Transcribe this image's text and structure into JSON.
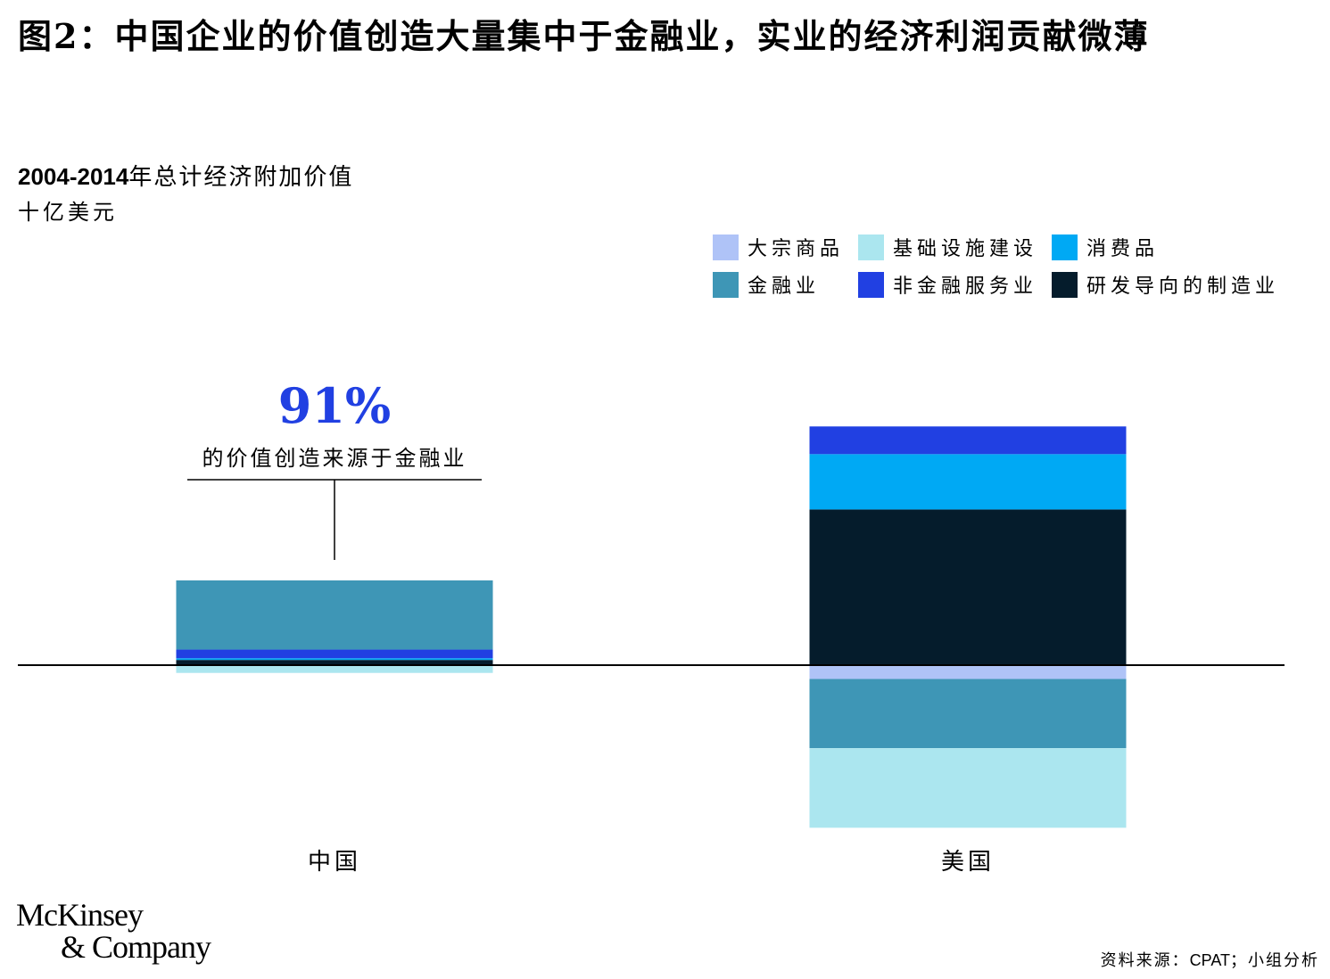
{
  "title": "图2：中国企业的价值创造大量集中于金融业，实业的经济利润贡献微薄",
  "subtitle": {
    "years": "2004-2014",
    "text": "年总计经济附加价值"
  },
  "unit": "十亿美元",
  "colors": {
    "commodities": "#afc3f7",
    "infrastructure": "#abe6ef",
    "consumer": "#00a9f4",
    "finance": "#3e96b6",
    "nonfin_services": "#2140e2",
    "rd_manufacturing": "#051c2c",
    "annotation_accent": "#2140e2"
  },
  "legend": [
    {
      "key": "commodities",
      "label": "大宗商品"
    },
    {
      "key": "infrastructure",
      "label": "基础设施建设"
    },
    {
      "key": "consumer",
      "label": "消费品"
    },
    {
      "key": "finance",
      "label": "金融业"
    },
    {
      "key": "nonfin_services",
      "label": "非金融服务业"
    },
    {
      "key": "rd_manufacturing",
      "label": "研发导向的制造业"
    }
  ],
  "annotation": {
    "value": "91%",
    "text": "的价值创造来源于金融业"
  },
  "chart_data": {
    "type": "bar",
    "stacked": true,
    "title": "2004-2014年总计经济附加价值",
    "ylabel": "十亿美元",
    "categories": [
      "中国",
      "美国"
    ],
    "series": [
      {
        "name": "大宗商品",
        "key": "commodities",
        "values": [
          0,
          -16
        ]
      },
      {
        "name": "基础设施建设",
        "key": "infrastructure",
        "values": [
          -9,
          -92
        ]
      },
      {
        "name": "消费品",
        "key": "consumer",
        "values": [
          2,
          64
        ]
      },
      {
        "name": "金融业",
        "key": "finance",
        "values": [
          80,
          -80
        ]
      },
      {
        "name": "非金融服务业",
        "key": "nonfin_services",
        "values": [
          10,
          32
        ]
      },
      {
        "name": "研发导向的制造业",
        "key": "rd_manufacturing",
        "values": [
          6,
          180
        ]
      }
    ],
    "positive_stack_order": [
      "rd_manufacturing",
      "consumer",
      "nonfin_services",
      "finance"
    ],
    "negative_stack_order": [
      "commodities",
      "finance",
      "infrastructure"
    ],
    "grid": false,
    "legend_position": "top-right"
  },
  "source": {
    "prefix": "资料来源：",
    "name": "CPAT",
    "suffix": "；小组分析"
  },
  "brand": {
    "line1": "McKinsey",
    "line2": "& Company"
  }
}
